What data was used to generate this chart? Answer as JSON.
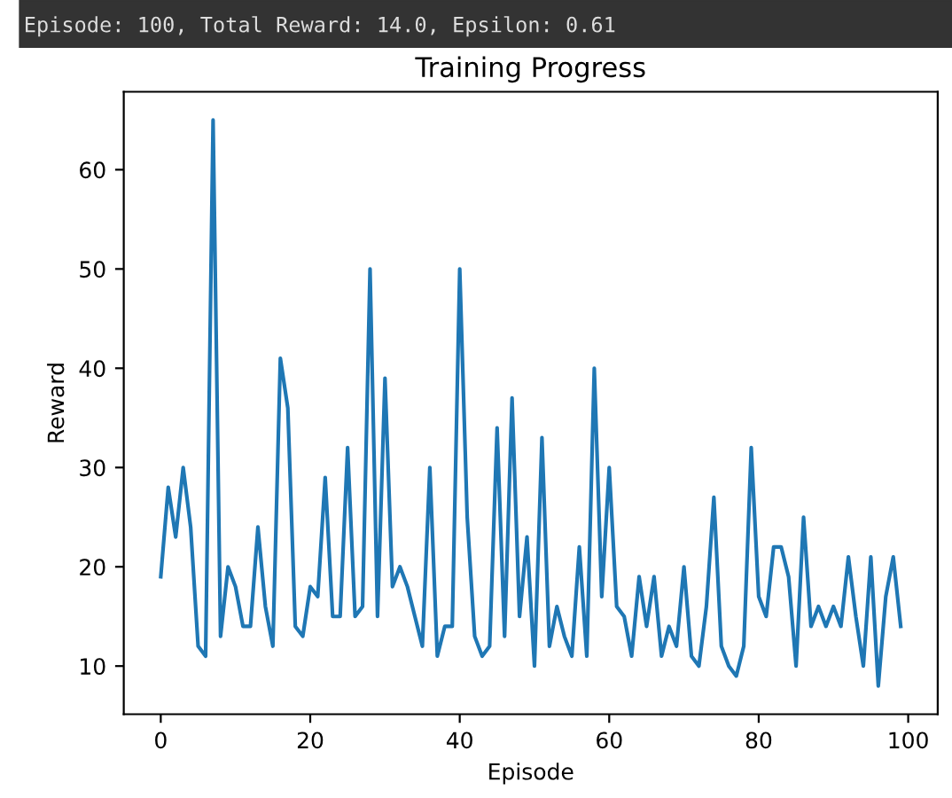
{
  "chart_data": {
    "type": "line",
    "title": "Training Progress",
    "xlabel": "Episode",
    "ylabel": "Reward",
    "annotations": [
      "Episode: 100, Total Reward: 14.0, Epsilon: 0.61"
    ],
    "x": [
      0,
      1,
      2,
      3,
      4,
      5,
      6,
      7,
      8,
      9,
      10,
      11,
      12,
      13,
      14,
      15,
      16,
      17,
      18,
      19,
      20,
      21,
      22,
      23,
      24,
      25,
      26,
      27,
      28,
      29,
      30,
      31,
      32,
      33,
      34,
      35,
      36,
      37,
      38,
      39,
      40,
      41,
      42,
      43,
      44,
      45,
      46,
      47,
      48,
      49,
      50,
      51,
      52,
      53,
      54,
      55,
      56,
      57,
      58,
      59,
      60,
      61,
      62,
      63,
      64,
      65,
      66,
      67,
      68,
      69,
      70,
      71,
      72,
      73,
      74,
      75,
      76,
      77,
      78,
      79,
      80,
      81,
      82,
      83,
      84,
      85,
      86,
      87,
      88,
      89,
      90,
      91,
      92,
      93,
      94,
      95,
      96,
      97,
      98,
      99
    ],
    "series": [
      {
        "color": "#1f77b4",
        "values": [
          19,
          28,
          23,
          30,
          24,
          12,
          11,
          65,
          13,
          20,
          18,
          14,
          14,
          24,
          16,
          12,
          41,
          36,
          14,
          13,
          18,
          17,
          29,
          15,
          15,
          32,
          15,
          16,
          50,
          15,
          39,
          18,
          20,
          18,
          15,
          12,
          30,
          11,
          14,
          14,
          50,
          25,
          13,
          11,
          12,
          34,
          13,
          37,
          15,
          23,
          10,
          33,
          12,
          16,
          13,
          11,
          22,
          11,
          40,
          17,
          30,
          16,
          15,
          11,
          19,
          14,
          19,
          11,
          14,
          12,
          20,
          11,
          10,
          16,
          27,
          12,
          10,
          9,
          12,
          32,
          17,
          15,
          22,
          22,
          19,
          10,
          25,
          14,
          16,
          14,
          16,
          14,
          21,
          15,
          10,
          21,
          8,
          17,
          21,
          14
        ]
      }
    ],
    "xlim": [
      -4.95,
      103.95
    ],
    "ylim": [
      5.15,
      67.85
    ],
    "xticks": [
      0,
      20,
      40,
      60,
      80,
      100
    ],
    "yticks": [
      10,
      20,
      30,
      40,
      50,
      60
    ],
    "grid": false,
    "marker": "none",
    "line_style": "solid"
  }
}
